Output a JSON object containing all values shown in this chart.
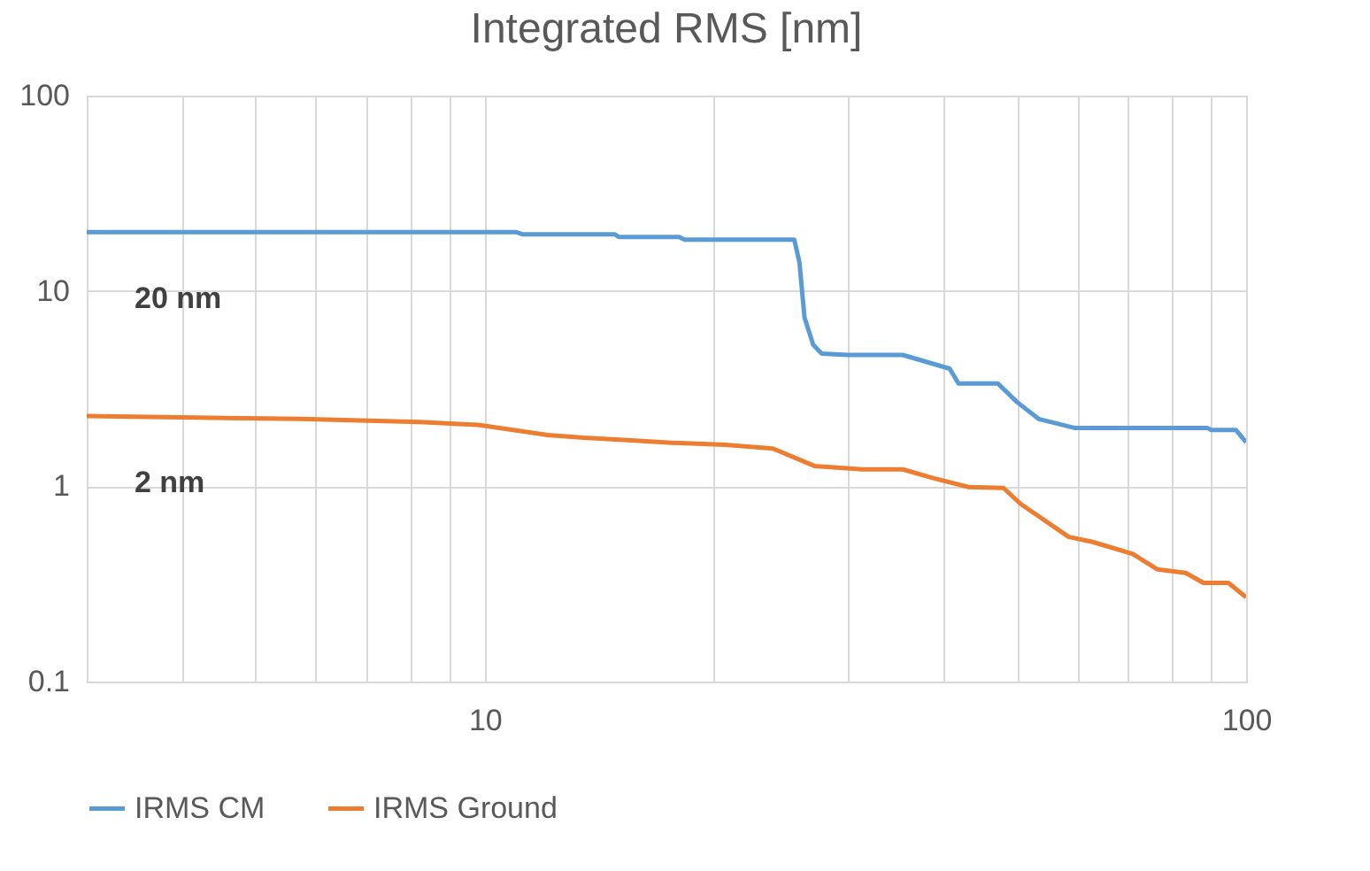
{
  "chart_data": {
    "type": "line",
    "title": "Integrated RMS [nm]",
    "log": "xy",
    "grid": true,
    "legend": "bottom",
    "xlim": [
      3,
      100
    ],
    "ylim": [
      0.1,
      100
    ],
    "xticks": [
      {
        "value": 3,
        "label": null
      },
      {
        "value": 4,
        "label": null
      },
      {
        "value": 5,
        "label": null
      },
      {
        "value": 6,
        "label": null
      },
      {
        "value": 7,
        "label": null
      },
      {
        "value": 8,
        "label": null
      },
      {
        "value": 9,
        "label": null
      },
      10,
      {
        "value": 20,
        "label": null
      },
      {
        "value": 30,
        "label": null
      },
      {
        "value": 40,
        "label": null
      },
      {
        "value": 50,
        "label": null
      },
      {
        "value": 60,
        "label": null
      },
      {
        "value": 70,
        "label": null
      },
      {
        "value": 80,
        "label": null
      },
      {
        "value": 90,
        "label": null
      },
      100
    ],
    "yticks": [
      0.1,
      1,
      10,
      100
    ],
    "series": [
      {
        "name": "IRMS CM",
        "color": "#5b9bd5",
        "x": [
          3,
          11.0,
          11.2,
          14.8,
          15.0,
          18.0,
          18.3,
          25.5,
          25.9,
          26.3,
          27.0,
          27.7,
          30,
          35.4,
          40.8,
          41.9,
          47.2,
          50,
          53.4,
          59.5,
          70,
          80,
          88.9,
          90,
          97,
          100
        ],
        "values": [
          20,
          20,
          19.5,
          19.5,
          18.9,
          18.9,
          18.3,
          18.3,
          14,
          7.3,
          5.3,
          4.78,
          4.7,
          4.7,
          4.0,
          3.36,
          3.36,
          2.7,
          2.21,
          1.99,
          1.99,
          1.99,
          1.99,
          1.94,
          1.94,
          1.68
        ]
      },
      {
        "name": "IRMS Ground",
        "color": "#ed7d31",
        "x": [
          3,
          5.73,
          8.2,
          9.8,
          11.1,
          12.1,
          13.5,
          15.4,
          17.6,
          20.7,
          23.9,
          27.1,
          31.3,
          35.4,
          38.8,
          43.2,
          48.0,
          50.6,
          58.5,
          62.7,
          71,
          76.5,
          83.3,
          87.9,
          94.8,
          100
        ],
        "values": [
          2.29,
          2.21,
          2.13,
          2.06,
          1.92,
          1.83,
          1.77,
          1.72,
          1.67,
          1.63,
          1.56,
          1.27,
          1.22,
          1.22,
          1.1,
          0.99,
          0.98,
          0.81,
          0.55,
          0.52,
          0.45,
          0.375,
          0.36,
          0.32,
          0.32,
          0.27
        ]
      }
    ],
    "annotations": [
      {
        "text": "20 nm",
        "x": 3,
        "y": 20
      },
      {
        "text": "2 nm",
        "x": 3,
        "y": 2.29
      }
    ]
  }
}
